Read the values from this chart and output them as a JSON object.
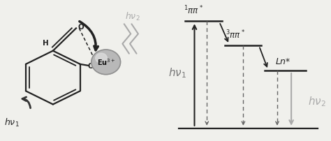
{
  "fig_width": 4.74,
  "fig_height": 2.02,
  "dpi": 100,
  "bg_color": "#f0f0ec",
  "arrow_color": "#333333",
  "dashed_color": "#555555",
  "line_color": "#222222",
  "label_color": "#888888",
  "hv1_label": "hν$_1$",
  "hv2_label": "hν$_2$",
  "S1_label": "$^1\\pi\\pi^*$",
  "T1_label": "$^3\\pi\\pi^*$",
  "Ln_label": "Ln*"
}
